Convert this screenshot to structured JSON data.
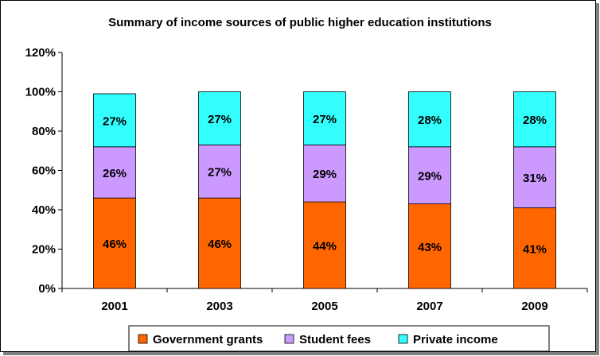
{
  "chart_data": {
    "type": "bar",
    "stacked": true,
    "title": "Summary of  income sources of public higher education institutions",
    "categories": [
      "2001",
      "2003",
      "2005",
      "2007",
      "2009"
    ],
    "series": [
      {
        "name": "Government grants",
        "values": [
          46,
          46,
          44,
          43,
          41
        ],
        "labels": [
          "46%",
          "46%",
          "44%",
          "43%",
          "41%"
        ],
        "color": "#ff6600"
      },
      {
        "name": "Student fees",
        "values": [
          26,
          27,
          29,
          29,
          31
        ],
        "labels": [
          "26%",
          "27%",
          "29%",
          "29%",
          "31%"
        ],
        "color": "#cc99ff"
      },
      {
        "name": "Private income",
        "values": [
          27,
          27,
          27,
          28,
          28
        ],
        "labels": [
          "27%",
          "27%",
          "27%",
          "28%",
          "28%"
        ],
        "color": "#33ffff"
      }
    ],
    "yticks": [
      "0%",
      "20%",
      "40%",
      "60%",
      "80%",
      "100%",
      "120%"
    ],
    "ylim": [
      0,
      120
    ],
    "grid": false,
    "legend": "bottom"
  }
}
